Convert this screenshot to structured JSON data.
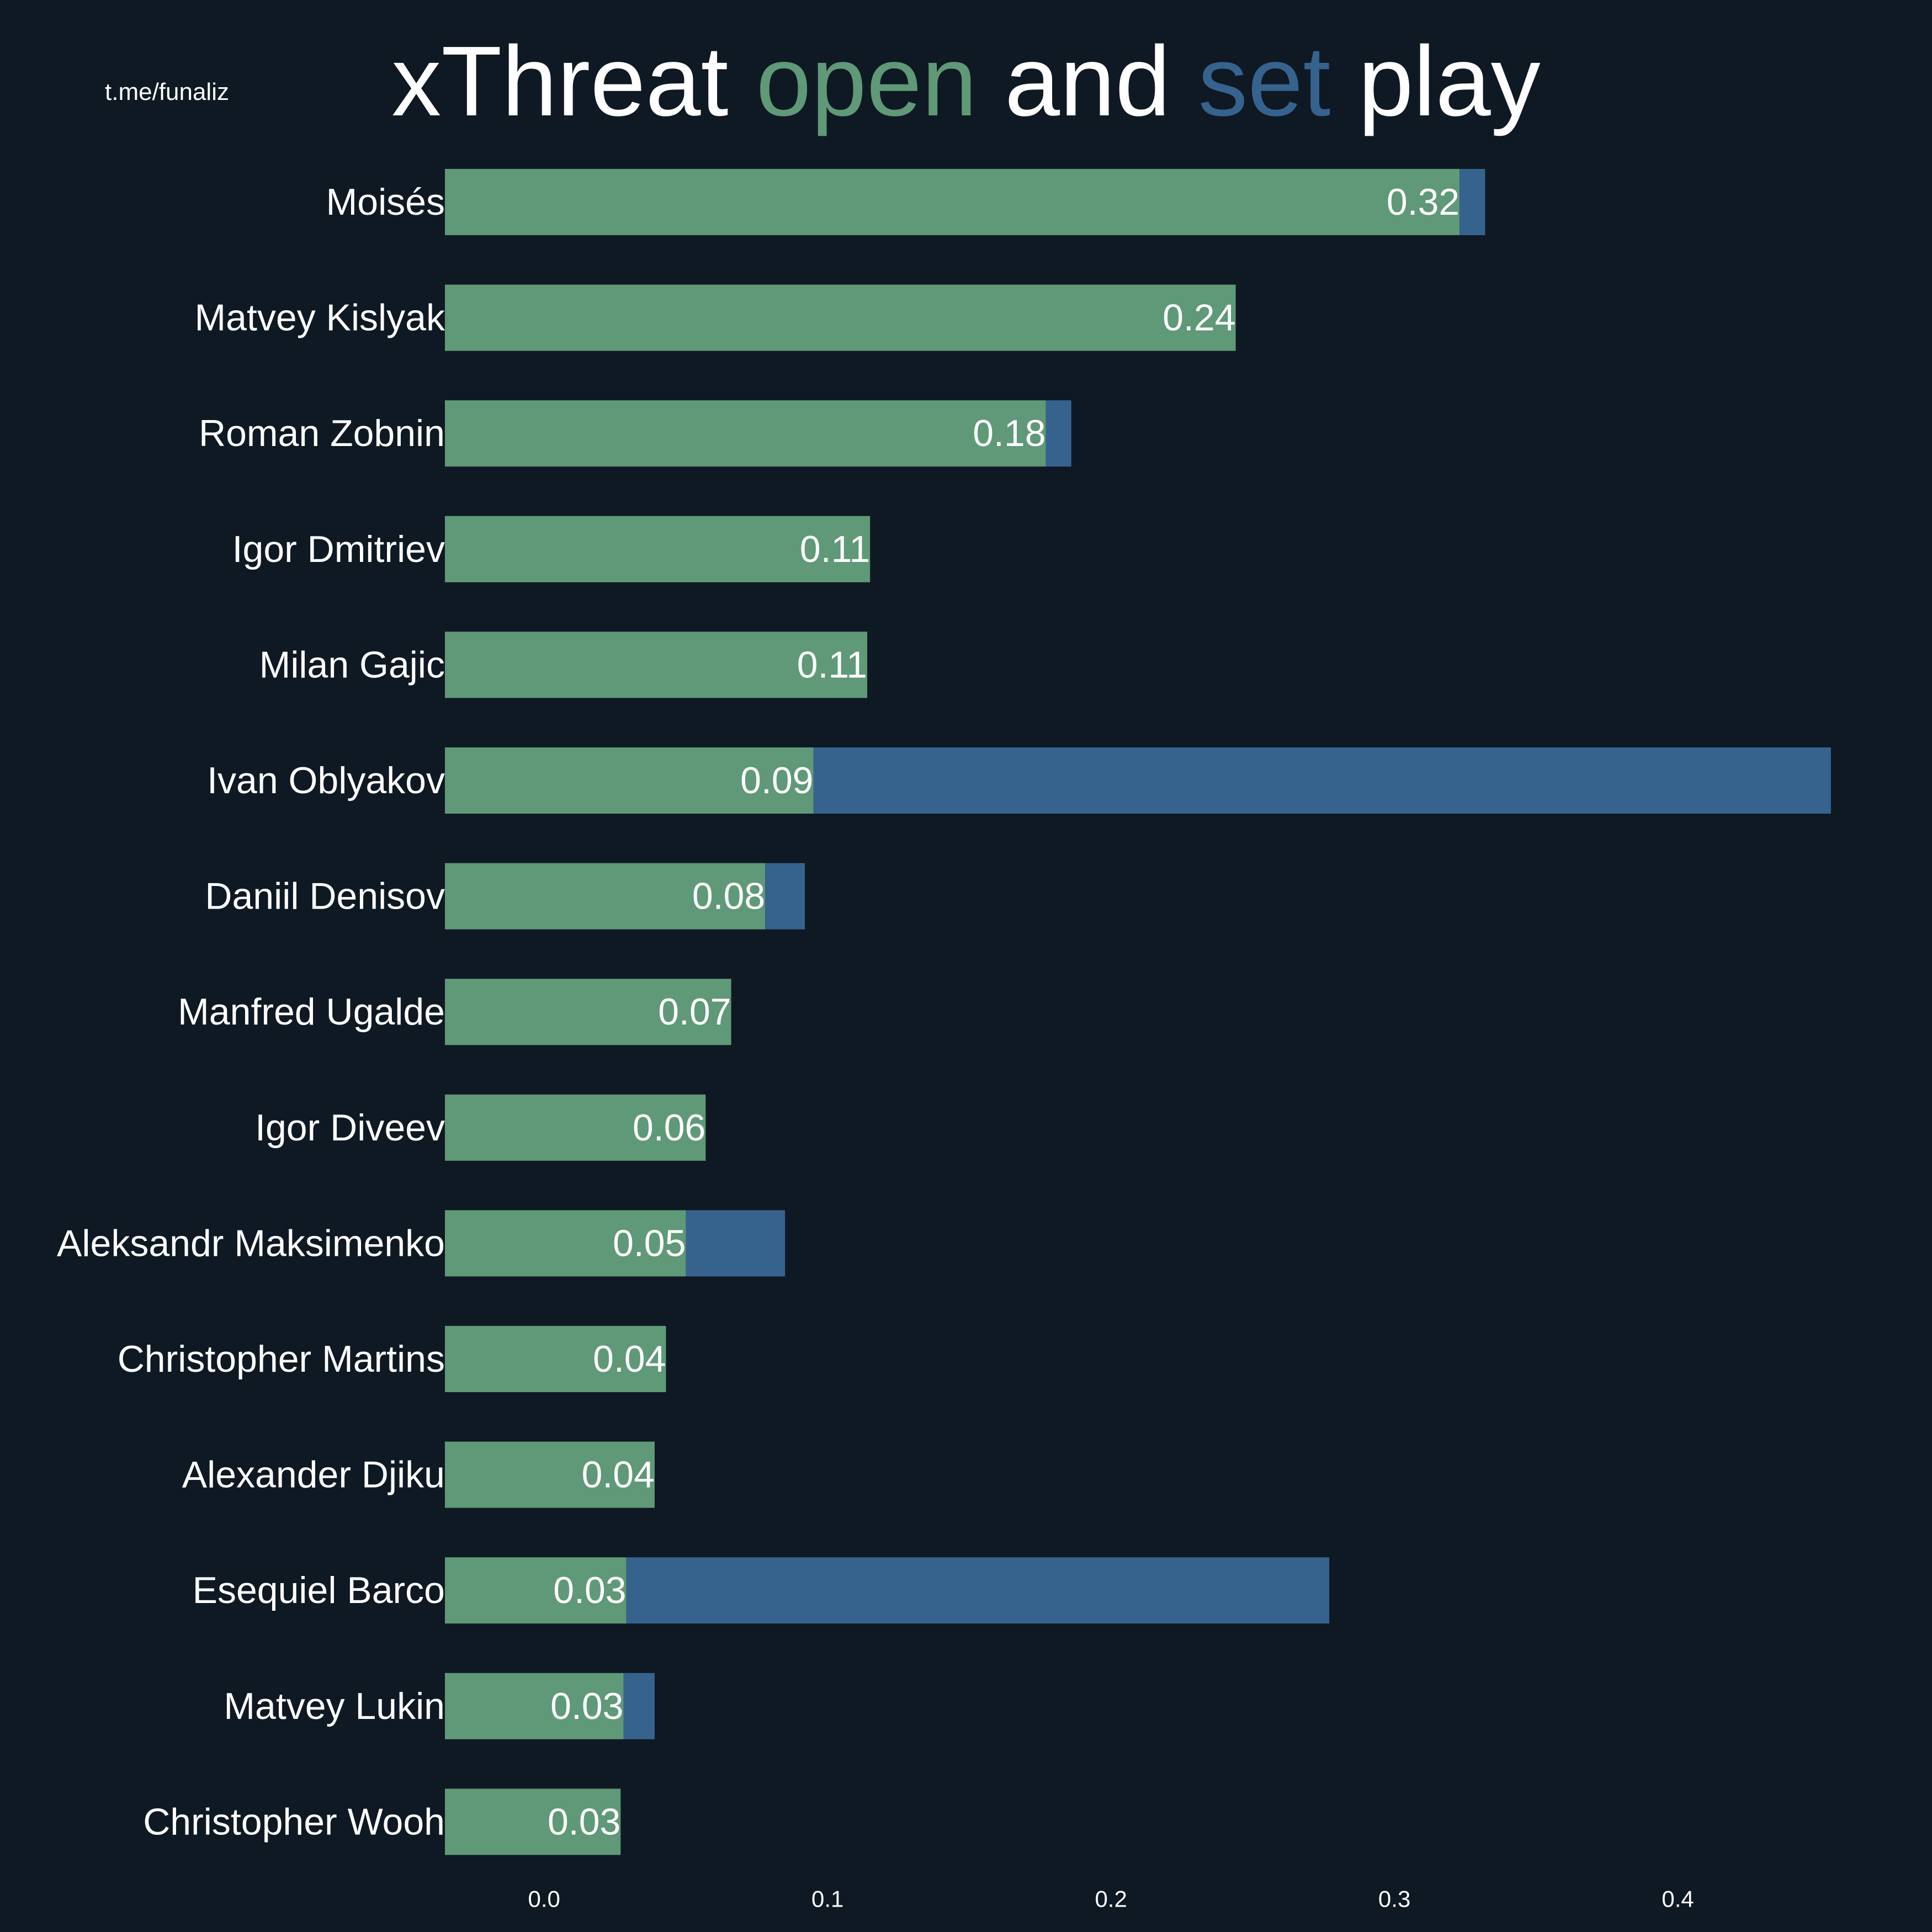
{
  "watermark": "t.me/funaliz",
  "title": {
    "part1": "xThreat ",
    "open": "open",
    "part2": " and ",
    "set": "set",
    "part3": " play"
  },
  "colors": {
    "background": "#0f1923",
    "open": "#5f9977",
    "set": "#36628e",
    "text": "#ffffff"
  },
  "chart_data": {
    "type": "bar",
    "orientation": "horizontal",
    "stacked": true,
    "title": "xThreat open and set play",
    "categories": [
      "Moisés",
      "Matvey Kislyak",
      "Roman Zobnin",
      "Igor Dmitriev",
      "Milan Gajic",
      "Ivan Oblyakov",
      "Daniil Denisov",
      "Manfred Ugalde",
      "Igor Diveev",
      "Aleksandr Maksimenko",
      "Christopher Martins",
      "Alexander Djiku",
      "Esequiel Barco",
      "Matvey Lukin",
      "Christopher Wooh"
    ],
    "series": [
      {
        "name": "open",
        "color": "#5f9977",
        "values": [
          0.323,
          0.244,
          0.177,
          0.115,
          0.114,
          0.095,
          0.078,
          0.066,
          0.057,
          0.05,
          0.043,
          0.039,
          0.029,
          0.028,
          0.027
        ]
      },
      {
        "name": "set",
        "color": "#36628e",
        "values": [
          0.009,
          0.0,
          0.009,
          0.0,
          0.0,
          0.359,
          0.014,
          0.0,
          0.0,
          0.035,
          0.0,
          0.0,
          0.248,
          0.011,
          0.0
        ]
      }
    ],
    "data_labels": [
      "0.32",
      "0.24",
      "0.18",
      "0.11",
      "0.11",
      "0.09",
      "0.08",
      "0.07",
      "0.06",
      "0.05",
      "0.04",
      "0.04",
      "0.03",
      "0.03",
      "0.03"
    ],
    "x_ticks": [
      "0.0",
      "0.1",
      "0.2",
      "0.3",
      "0.4"
    ],
    "x_tick_values": [
      0.0,
      0.1,
      0.2,
      0.3,
      0.4
    ],
    "xlim": [
      -0.035,
      0.455
    ],
    "grid": false,
    "legend": "none (encoded in title colors)"
  }
}
